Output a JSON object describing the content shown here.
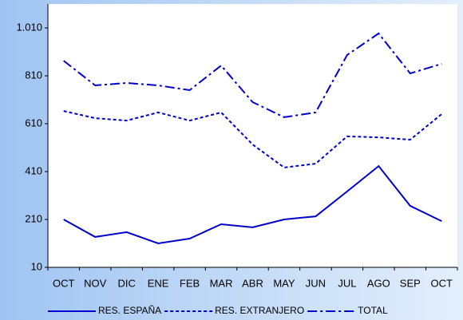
{
  "chart_data": {
    "type": "line",
    "categories": [
      "OCT",
      "NOV",
      "DIC",
      "ENE",
      "FEB",
      "MAR",
      "ABR",
      "MAY",
      "JUN",
      "JUL",
      "AGO",
      "SEP",
      "OCT"
    ],
    "series": [
      {
        "name": "RES. ESPAÑA",
        "color": "#0000cc",
        "dash": "solid",
        "values": [
          210,
          137,
          157,
          110,
          130,
          190,
          177,
          210,
          223,
          327,
          433,
          267,
          203
        ]
      },
      {
        "name": "RES. EXTRANJERO",
        "color": "#0000cc",
        "dash": "dotted",
        "values": [
          663,
          633,
          623,
          657,
          623,
          657,
          523,
          427,
          443,
          557,
          553,
          543,
          650
        ]
      },
      {
        "name": "TOTAL",
        "color": "#0000cc",
        "dash": "dashdot",
        "values": [
          873,
          770,
          780,
          770,
          750,
          853,
          700,
          637,
          657,
          897,
          987,
          820,
          860
        ]
      }
    ],
    "ylim": [
      10,
      1110
    ],
    "yticks": [
      10,
      210,
      410,
      610,
      810,
      {
        "value": 1010,
        "label": "1.010"
      }
    ],
    "legend": "bottom"
  }
}
